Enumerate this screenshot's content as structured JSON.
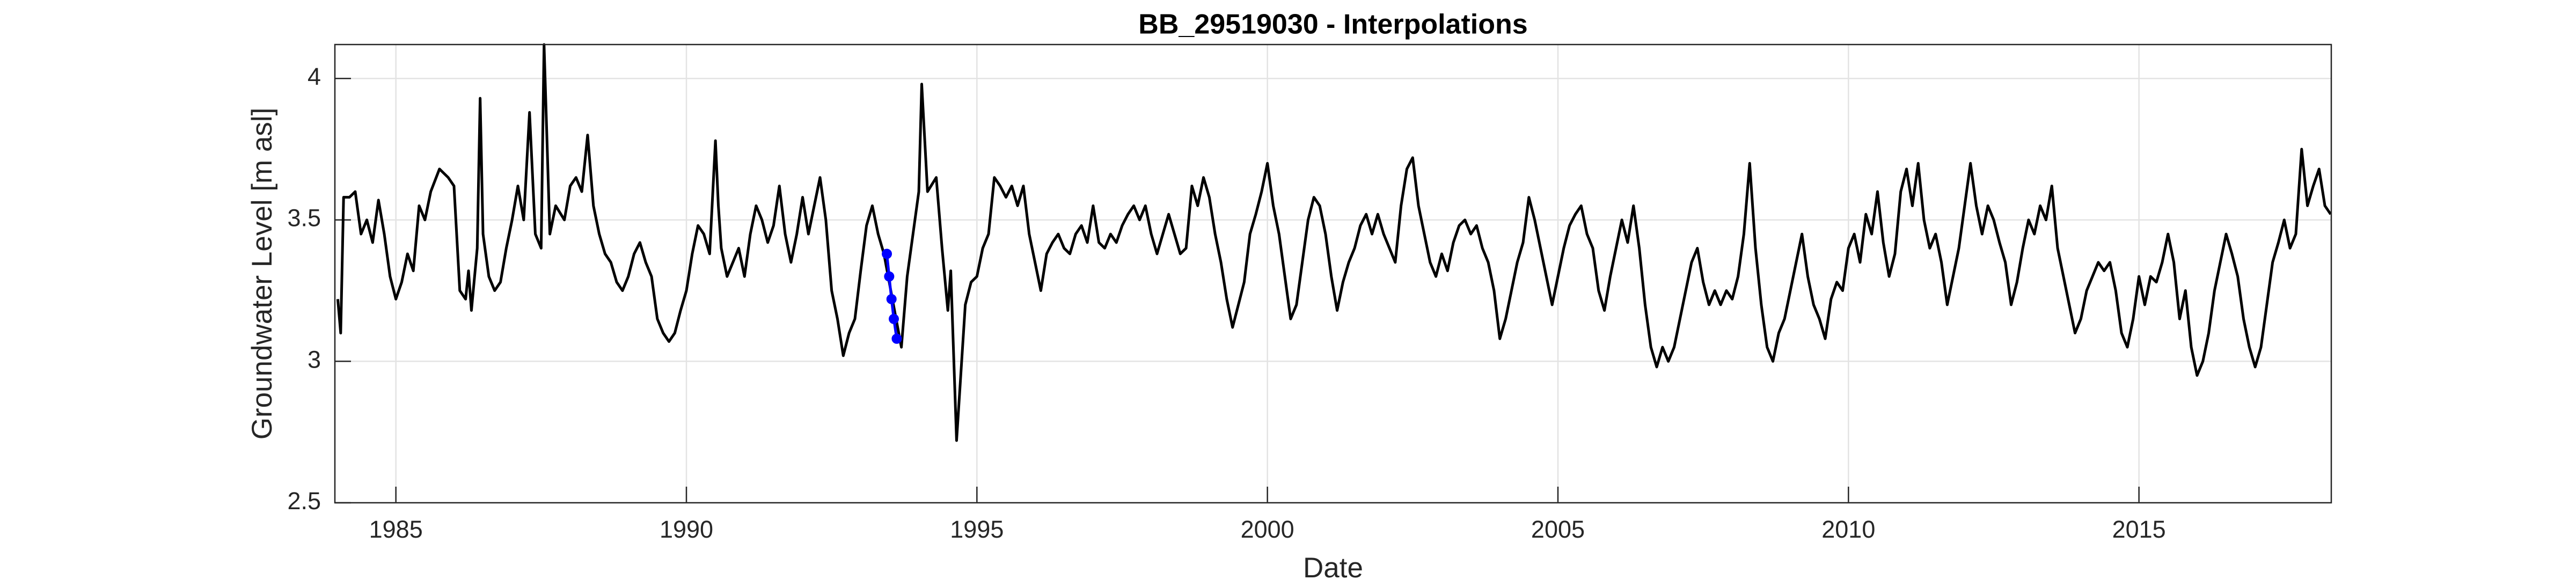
{
  "chart_data": {
    "type": "line",
    "title": "BB_29519030 - Interpolations",
    "xlabel": "Date",
    "ylabel": "Groundwater Level [m asl]",
    "xlim": [
      1983.95,
      2018.31
    ],
    "ylim": [
      2.5,
      4.12
    ],
    "xticks": [
      1985,
      1990,
      1995,
      2000,
      2005,
      2010,
      2015
    ],
    "yticks": [
      2.5,
      3,
      3.5,
      4
    ],
    "grid": true,
    "series": [
      {
        "color": "#000000",
        "marker": false,
        "x": [
          1984,
          1984.05,
          1984.1,
          1984.2,
          1984.3,
          1984.4,
          1984.5,
          1984.6,
          1984.7,
          1984.8,
          1984.9,
          1985,
          1985.1,
          1985.2,
          1985.3,
          1985.4,
          1985.5,
          1985.6,
          1985.75,
          1985.9,
          1986,
          1986.1,
          1986.2,
          1986.25,
          1986.3,
          1986.4,
          1986.45,
          1986.5,
          1986.6,
          1986.7,
          1986.8,
          1986.9,
          1987,
          1987.1,
          1987.2,
          1987.3,
          1987.4,
          1987.5,
          1987.55,
          1987.65,
          1987.75,
          1987.9,
          1988,
          1988.1,
          1988.2,
          1988.3,
          1988.4,
          1988.5,
          1988.6,
          1988.7,
          1988.8,
          1988.9,
          1989,
          1989.1,
          1989.2,
          1989.3,
          1989.4,
          1989.5,
          1989.6,
          1989.7,
          1989.8,
          1989.9,
          1990,
          1990.1,
          1990.2,
          1990.3,
          1990.4,
          1990.5,
          1990.55,
          1990.6,
          1990.7,
          1990.8,
          1990.9,
          1991,
          1991.1,
          1991.2,
          1991.3,
          1991.4,
          1991.5,
          1991.6,
          1991.7,
          1991.8,
          1991.9,
          1992,
          1992.1,
          1992.2,
          1992.3,
          1992.4,
          1992.5,
          1992.6,
          1992.7,
          1992.8,
          1992.9,
          1993,
          1993.1,
          1993.2,
          1993.3,
          1993.4,
          1993.7,
          1993.8,
          1993.9,
          1994,
          1994.05,
          1994.15,
          1994.3,
          1994.4,
          1994.5,
          1994.55,
          1994.65,
          1994.8,
          1994.9,
          1995,
          1995.1,
          1995.2,
          1995.3,
          1995.4,
          1995.5,
          1995.6,
          1995.7,
          1995.8,
          1995.9,
          1996,
          1996.1,
          1996.2,
          1996.3,
          1996.4,
          1996.5,
          1996.6,
          1996.7,
          1996.8,
          1996.9,
          1997,
          1997.1,
          1997.2,
          1997.3,
          1997.4,
          1997.5,
          1997.6,
          1997.7,
          1997.8,
          1997.9,
          1998,
          1998.1,
          1998.2,
          1998.3,
          1998.4,
          1998.5,
          1998.6,
          1998.7,
          1998.8,
          1998.9,
          1999,
          1999.1,
          1999.2,
          1999.3,
          1999.4,
          1999.5,
          1999.6,
          1999.7,
          1999.8,
          1999.9,
          2000,
          2000.1,
          2000.2,
          2000.3,
          2000.4,
          2000.5,
          2000.6,
          2000.7,
          2000.8,
          2000.9,
          2001,
          2001.1,
          2001.2,
          2001.3,
          2001.4,
          2001.5,
          2001.6,
          2001.7,
          2001.8,
          2001.9,
          2002,
          2002.1,
          2002.2,
          2002.3,
          2002.4,
          2002.5,
          2002.6,
          2002.7,
          2002.8,
          2002.9,
          2003,
          2003.1,
          2003.2,
          2003.3,
          2003.4,
          2003.5,
          2003.6,
          2003.7,
          2003.8,
          2003.9,
          2004,
          2004.1,
          2004.2,
          2004.3,
          2004.4,
          2004.5,
          2004.6,
          2004.7,
          2004.8,
          2004.9,
          2005,
          2005.1,
          2005.2,
          2005.3,
          2005.4,
          2005.5,
          2005.6,
          2005.7,
          2005.8,
          2005.9,
          2006,
          2006.1,
          2006.2,
          2006.3,
          2006.4,
          2006.5,
          2006.6,
          2006.7,
          2006.8,
          2006.9,
          2007,
          2007.1,
          2007.2,
          2007.3,
          2007.4,
          2007.5,
          2007.6,
          2007.7,
          2007.8,
          2007.9,
          2008,
          2008.1,
          2008.2,
          2008.3,
          2008.4,
          2008.5,
          2008.6,
          2008.7,
          2008.8,
          2008.9,
          2009,
          2009.1,
          2009.2,
          2009.3,
          2009.4,
          2009.5,
          2009.6,
          2009.7,
          2009.8,
          2009.9,
          2010,
          2010.1,
          2010.2,
          2010.3,
          2010.4,
          2010.5,
          2010.6,
          2010.7,
          2010.8,
          2010.9,
          2011,
          2011.1,
          2011.2,
          2011.3,
          2011.4,
          2011.5,
          2011.6,
          2011.7,
          2011.8,
          2011.9,
          2012,
          2012.1,
          2012.2,
          2012.3,
          2012.4,
          2012.5,
          2012.6,
          2012.7,
          2012.8,
          2012.9,
          2013,
          2013.1,
          2013.2,
          2013.3,
          2013.4,
          2013.5,
          2013.6,
          2013.7,
          2013.8,
          2013.9,
          2014,
          2014.1,
          2014.2,
          2014.3,
          2014.4,
          2014.5,
          2014.6,
          2014.7,
          2014.8,
          2014.9,
          2015,
          2015.1,
          2015.2,
          2015.3,
          2015.4,
          2015.5,
          2015.6,
          2015.7,
          2015.8,
          2015.9,
          2016,
          2016.1,
          2016.2,
          2016.3,
          2016.4,
          2016.5,
          2016.6,
          2016.7,
          2016.8,
          2016.9,
          2017,
          2017.1,
          2017.2,
          2017.3,
          2017.4,
          2017.5,
          2017.6,
          2017.7,
          2017.8,
          2017.9,
          2018,
          2018.1,
          2018.2,
          2018.3
        ],
        "values": [
          3.22,
          3.1,
          3.58,
          3.58,
          3.6,
          3.45,
          3.5,
          3.42,
          3.57,
          3.45,
          3.3,
          3.22,
          3.28,
          3.38,
          3.32,
          3.55,
          3.5,
          3.6,
          3.68,
          3.65,
          3.62,
          3.25,
          3.22,
          3.32,
          3.18,
          3.4,
          3.93,
          3.45,
          3.3,
          3.25,
          3.28,
          3.4,
          3.5,
          3.62,
          3.5,
          3.88,
          3.45,
          3.4,
          4.12,
          3.45,
          3.55,
          3.5,
          3.62,
          3.65,
          3.6,
          3.8,
          3.55,
          3.45,
          3.38,
          3.35,
          3.28,
          3.25,
          3.3,
          3.38,
          3.42,
          3.35,
          3.3,
          3.15,
          3.1,
          3.07,
          3.1,
          3.18,
          3.25,
          3.38,
          3.48,
          3.45,
          3.38,
          3.78,
          3.55,
          3.4,
          3.3,
          3.35,
          3.4,
          3.3,
          3.45,
          3.55,
          3.5,
          3.42,
          3.48,
          3.62,
          3.45,
          3.35,
          3.45,
          3.58,
          3.45,
          3.55,
          3.65,
          3.5,
          3.25,
          3.15,
          3.02,
          3.1,
          3.15,
          3.32,
          3.48,
          3.55,
          3.45,
          3.38,
          3.05,
          3.3,
          3.45,
          3.6,
          3.98,
          3.6,
          3.65,
          3.4,
          3.18,
          3.32,
          2.72,
          3.2,
          3.28,
          3.3,
          3.4,
          3.45,
          3.65,
          3.62,
          3.58,
          3.62,
          3.55,
          3.62,
          3.45,
          3.35,
          3.25,
          3.38,
          3.42,
          3.45,
          3.4,
          3.38,
          3.45,
          3.48,
          3.42,
          3.55,
          3.42,
          3.4,
          3.45,
          3.42,
          3.48,
          3.52,
          3.55,
          3.5,
          3.55,
          3.45,
          3.38,
          3.45,
          3.52,
          3.45,
          3.38,
          3.4,
          3.62,
          3.55,
          3.65,
          3.58,
          3.45,
          3.35,
          3.22,
          3.12,
          3.2,
          3.28,
          3.45,
          3.52,
          3.6,
          3.7,
          3.55,
          3.45,
          3.3,
          3.15,
          3.2,
          3.35,
          3.5,
          3.58,
          3.55,
          3.45,
          3.3,
          3.18,
          3.28,
          3.35,
          3.4,
          3.48,
          3.52,
          3.45,
          3.52,
          3.45,
          3.4,
          3.35,
          3.55,
          3.68,
          3.72,
          3.55,
          3.45,
          3.35,
          3.3,
          3.38,
          3.32,
          3.42,
          3.48,
          3.5,
          3.45,
          3.48,
          3.4,
          3.35,
          3.25,
          3.08,
          3.15,
          3.25,
          3.35,
          3.42,
          3.58,
          3.5,
          3.4,
          3.3,
          3.2,
          3.3,
          3.4,
          3.48,
          3.52,
          3.55,
          3.45,
          3.4,
          3.25,
          3.18,
          3.3,
          3.4,
          3.5,
          3.42,
          3.55,
          3.4,
          3.2,
          3.05,
          2.98,
          3.05,
          3,
          3.05,
          3.15,
          3.25,
          3.35,
          3.4,
          3.28,
          3.2,
          3.25,
          3.2,
          3.25,
          3.22,
          3.3,
          3.45,
          3.7,
          3.4,
          3.2,
          3.05,
          3,
          3.1,
          3.15,
          3.25,
          3.35,
          3.45,
          3.3,
          3.2,
          3.15,
          3.08,
          3.22,
          3.28,
          3.25,
          3.4,
          3.45,
          3.35,
          3.52,
          3.45,
          3.6,
          3.42,
          3.3,
          3.38,
          3.6,
          3.68,
          3.55,
          3.7,
          3.5,
          3.4,
          3.45,
          3.35,
          3.2,
          3.3,
          3.4,
          3.55,
          3.7,
          3.55,
          3.45,
          3.55,
          3.5,
          3.42,
          3.35,
          3.2,
          3.28,
          3.4,
          3.5,
          3.45,
          3.55,
          3.5,
          3.62,
          3.4,
          3.3,
          3.2,
          3.1,
          3.15,
          3.25,
          3.3,
          3.35,
          3.32,
          3.35,
          3.25,
          3.1,
          3.05,
          3.15,
          3.3,
          3.2,
          3.3,
          3.28,
          3.35,
          3.45,
          3.35,
          3.15,
          3.25,
          3.05,
          2.95,
          3,
          3.1,
          3.25,
          3.35,
          3.45,
          3.38,
          3.3,
          3.15,
          3.05,
          2.98,
          3.05,
          3.2,
          3.35,
          3.42,
          3.5,
          3.4,
          3.45,
          3.75,
          3.55,
          3.62,
          3.68,
          3.55,
          3.52
        ]
      },
      {
        "color": "#0000ff",
        "marker": true,
        "x": [
          1993.45,
          1993.49,
          1993.53,
          1993.57,
          1993.62
        ],
        "values": [
          3.38,
          3.3,
          3.22,
          3.15,
          3.08
        ]
      }
    ]
  }
}
